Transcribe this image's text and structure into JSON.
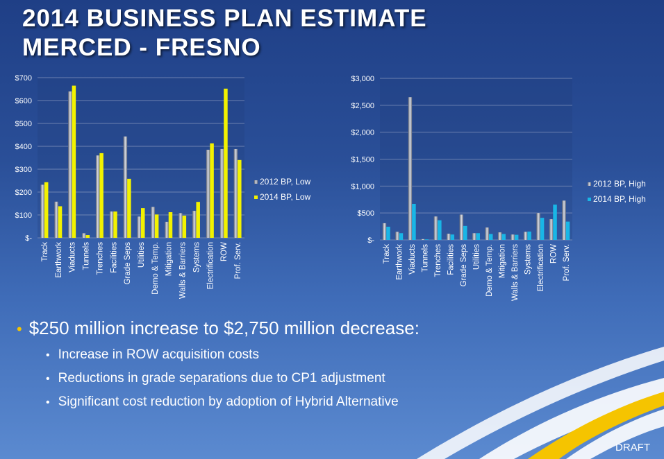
{
  "title": {
    "line1": "2014 BUSINESS PLAN ESTIMATE",
    "line2": "MERCED - FRESNO"
  },
  "colors": {
    "series_2012": "#9aa0ad",
    "series_2014_low": "#f2f200",
    "series_2014_high": "#19b6e6",
    "accent_yellow": "#f5c400"
  },
  "chart_data": [
    {
      "type": "bar",
      "categories": [
        "Track",
        "Earthwork",
        "Viaducts",
        "Tunnels",
        "Trenches",
        "Facilities",
        "Grade Seps",
        "Utilities",
        "Demo & Temp.",
        "Mitigation",
        "Walls & Barriers",
        "Systems",
        "Electrification",
        "ROW",
        "Prof. Serv."
      ],
      "series": [
        {
          "name": "2012 BP, Low",
          "values": [
            232,
            158,
            640,
            20,
            360,
            115,
            443,
            93,
            135,
            70,
            108,
            118,
            385,
            388,
            388
          ]
        },
        {
          "name": "2014 BP, Low",
          "values": [
            243,
            138,
            665,
            12,
            370,
            115,
            258,
            130,
            102,
            112,
            97,
            157,
            413,
            652,
            340
          ]
        }
      ],
      "ylim": [
        0,
        700
      ],
      "yticks": [
        0,
        100,
        200,
        300,
        400,
        500,
        600,
        700
      ],
      "ytick_labels": [
        "$-",
        "$100",
        "$200",
        "$300",
        "$400",
        "$500",
        "$600",
        "$700"
      ],
      "grid": true,
      "legend_position": "right"
    },
    {
      "type": "bar",
      "categories": [
        "Track",
        "Earthwork",
        "Viaducts",
        "Tunnels",
        "Trenches",
        "Facilities",
        "Grade Seps",
        "Utilities",
        "Demo & Temp.",
        "Mitigation",
        "Walls & Barriers",
        "Systems",
        "Electrification",
        "ROW",
        "Prof. Serv."
      ],
      "series": [
        {
          "name": "2012 BP, High",
          "values": [
            310,
            150,
            2650,
            15,
            435,
            115,
            470,
            125,
            230,
            140,
            100,
            150,
            500,
            385,
            730
          ]
        },
        {
          "name": "2014 BP, High",
          "values": [
            245,
            125,
            670,
            10,
            365,
            100,
            260,
            125,
            110,
            110,
            95,
            155,
            410,
            655,
            340
          ]
        }
      ],
      "ylim": [
        0,
        3000
      ],
      "yticks": [
        0,
        500,
        1000,
        1500,
        2000,
        2500,
        3000
      ],
      "ytick_labels": [
        "$-",
        "$500",
        "$1,000",
        "$1,500",
        "$2,000",
        "$2,500",
        "$3,000"
      ],
      "grid": true,
      "legend_position": "right"
    }
  ],
  "bullets": {
    "main": "$250 million increase to $2,750 million decrease:",
    "sub": [
      "Increase in ROW acquisition costs",
      "Reductions in grade separations due to CP1 adjustment",
      "Significant cost reduction by adoption of Hybrid Alternative"
    ]
  },
  "footer": {
    "draft": "DRAFT"
  }
}
